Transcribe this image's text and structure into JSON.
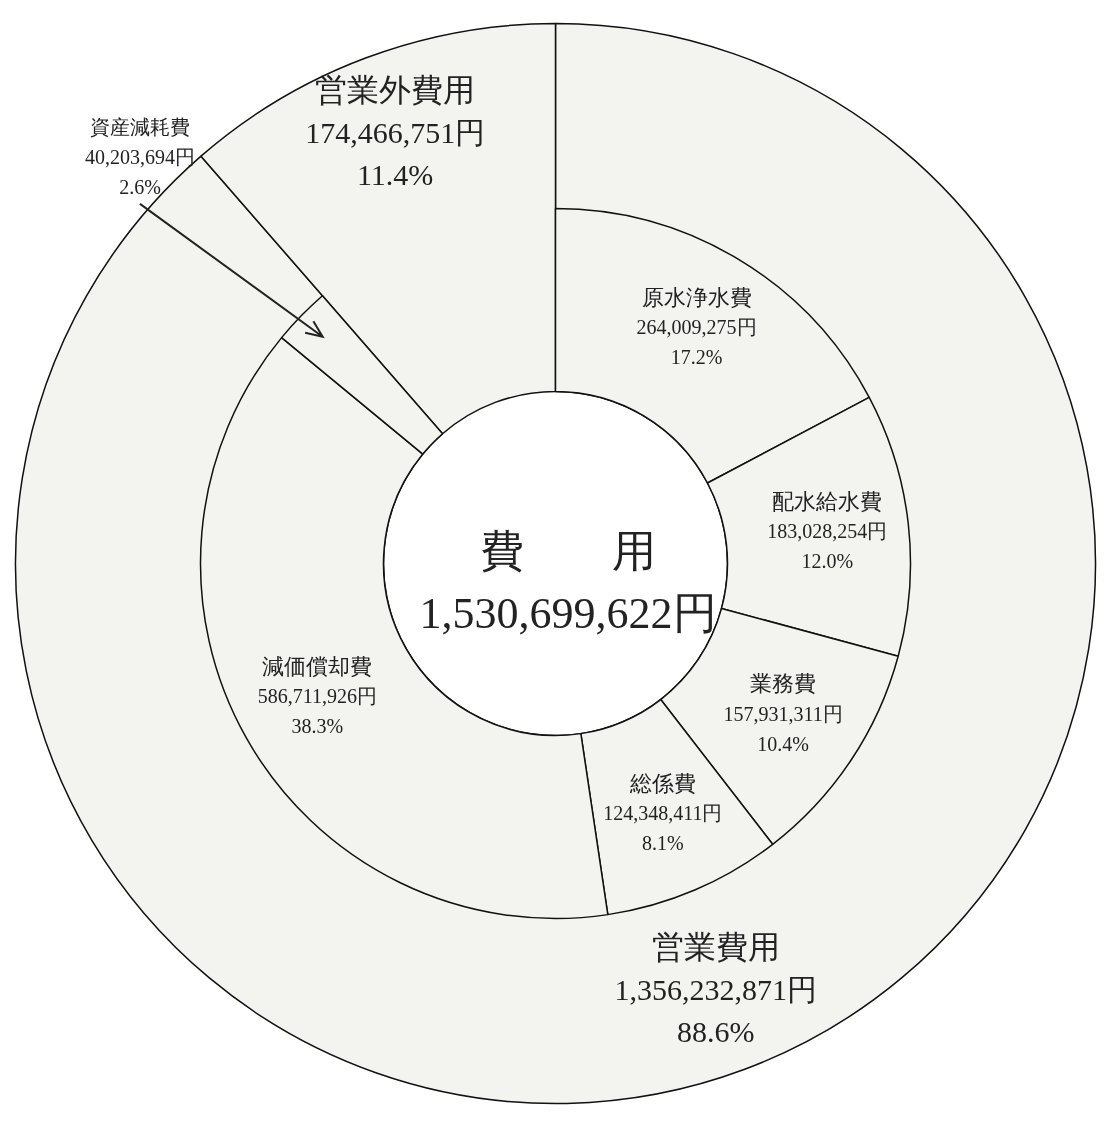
{
  "chart_data": [
    {
      "type": "donut",
      "categories": [
        "営業費用",
        "営業外費用"
      ],
      "values": [
        1356232871,
        174466751
      ],
      "colors": [
        "#f3f3f0",
        "#f3f3f0"
      ],
      "value_labels": [
        "1,356,232,871円\n88.6%",
        "174,466,751円\n11.4%"
      ]
    },
    {
      "type": "donut",
      "annotations": [
        "費　　用",
        "1,530,699,622円"
      ],
      "categories": [
        "原水浄水費",
        "配水給水費",
        "業務費",
        "総係費",
        "減価償却費",
        "資産減耗費"
      ],
      "values": [
        264009275,
        183028254,
        157931311,
        124348411,
        586711926,
        40203694
      ],
      "colors": [
        "#f3f3f0",
        "#f3f3f0",
        "#f3f3f0",
        "#f3f3f0",
        "#f3f3f0",
        "#f3f3f0"
      ],
      "value_labels": [
        "264,009,275円\n17.2%",
        "183,028,254円\n12.0%",
        "157,931,311円\n10.4%",
        "124,348,411円\n8.1%",
        "586,711,926円\n38.3%",
        "40,203,694円\n2.6%"
      ]
    }
  ]
}
